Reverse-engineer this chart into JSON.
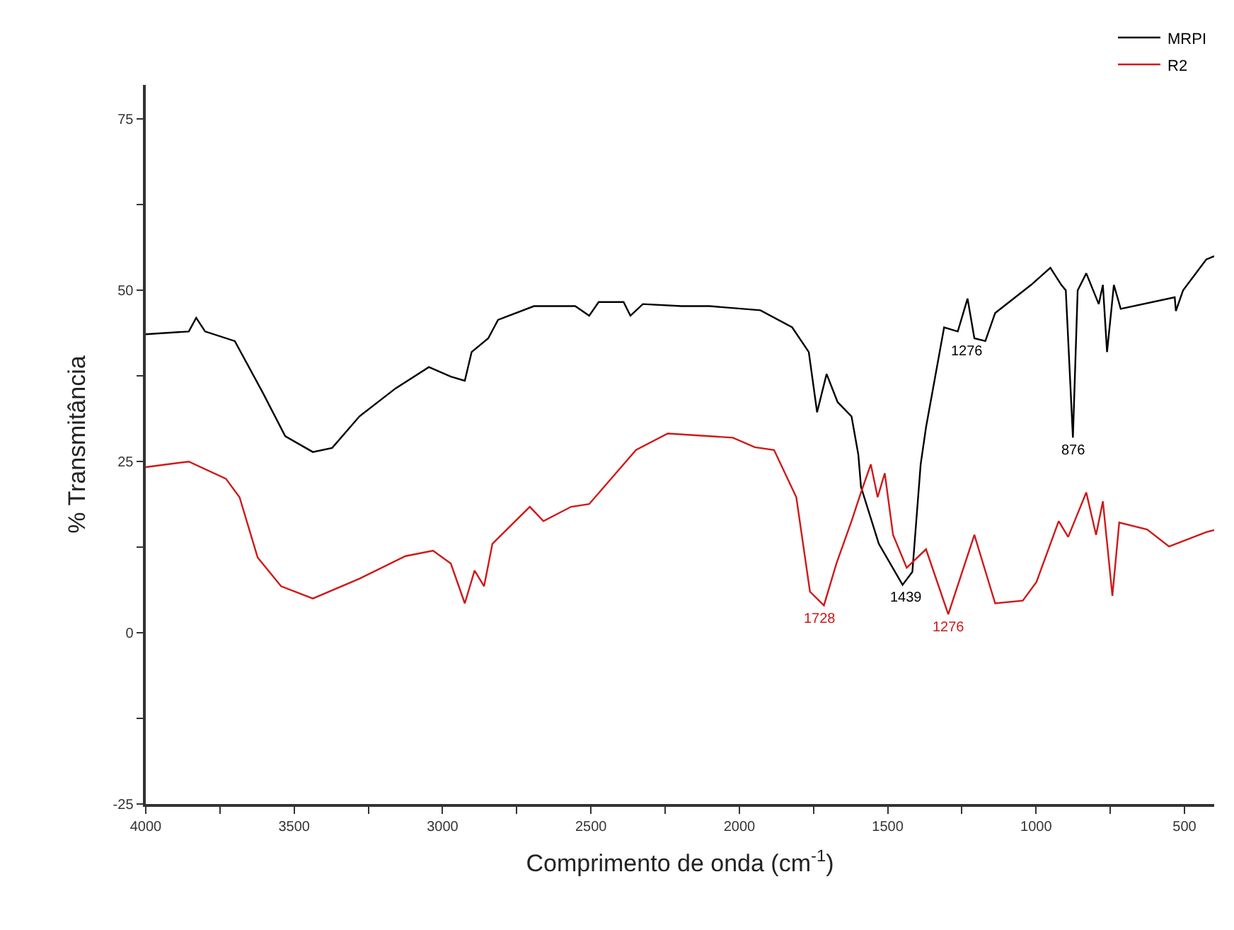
{
  "chart_data": {
    "type": "line",
    "xlabel": "Comprimento de onda (cm$^{-1}$)",
    "ylabel": "% Transmitância",
    "xlim": [
      4000,
      400
    ],
    "ylim": [
      -25,
      80
    ],
    "xticks": [
      4000,
      {
        "value": 3750,
        "label": null
      },
      3500,
      {
        "value": 3250,
        "label": null
      },
      3000,
      {
        "value": 2750,
        "label": null
      },
      2500,
      {
        "value": 2250,
        "label": null
      },
      2000,
      {
        "value": 1750,
        "label": null
      },
      1500,
      {
        "value": 1250,
        "label": null
      },
      1000,
      {
        "value": 750,
        "label": null
      },
      500
    ],
    "yticks": [
      -25,
      {
        "value": -12.5,
        "label": null
      },
      0,
      {
        "value": 12.5,
        "label": null
      },
      25,
      {
        "value": 37.5,
        "label": null
      },
      50,
      {
        "value": 62.5,
        "label": null
      },
      75
    ],
    "legend": "top right",
    "marker": "none",
    "line_style": "solid",
    "series": [
      {
        "name": "MRPI",
        "color": "#000000",
        "x": [
          4000,
          3855,
          3830,
          3800,
          3700,
          3605,
          3530,
          3437,
          3372,
          3280,
          3158,
          3046,
          2972,
          2925,
          2902,
          2846,
          2813,
          2692,
          2553,
          2506,
          2474,
          2390,
          2367,
          2325,
          2195,
          2100,
          1929,
          1822,
          1766,
          1738,
          1706,
          1669,
          1622,
          1599,
          1590,
          1530,
          1450,
          1417,
          1389,
          1371,
          1310,
          1264,
          1231,
          1208,
          1171,
          1138,
          1017,
          952,
          915,
          900,
          876,
          860,
          831,
          789,
          775,
          761,
          738,
          715,
          533,
          529,
          505,
          427,
          400
        ],
        "values": [
          43.6,
          44,
          46,
          44,
          42.6,
          35,
          28.7,
          26.4,
          27,
          31.6,
          35.7,
          38.8,
          37.4,
          36.8,
          41,
          43,
          45.7,
          47.7,
          47.7,
          46.3,
          48.3,
          48.3,
          46.3,
          48,
          47.7,
          47.7,
          47.1,
          44.6,
          41,
          32.2,
          37.8,
          33.7,
          31.6,
          26,
          21.3,
          13,
          7,
          8.9,
          24.6,
          30,
          44.6,
          44,
          48.8,
          43,
          42.6,
          46.7,
          50.8,
          53.3,
          50.8,
          50,
          28.5,
          50,
          52.5,
          48,
          50.8,
          41,
          50.8,
          47.3,
          49,
          47,
          50,
          54.5,
          55
        ]
      },
      {
        "name": "R2",
        "color": "#d01818",
        "x": [
          4000,
          3855,
          3730,
          3684,
          3623,
          3544,
          3437,
          3280,
          3125,
          3032,
          2972,
          2925,
          2892,
          2860,
          2832,
          2706,
          2660,
          2567,
          2506,
          2348,
          2241,
          2022,
          1948,
          1883,
          1808,
          1762,
          1715,
          1673,
          1622,
          1590,
          1557,
          1534,
          1510,
          1482,
          1436,
          1371,
          1296,
          1208,
          1138,
          1045,
          999,
          924,
          892,
          831,
          798,
          775,
          743,
          720,
          626,
          552,
          427,
          400
        ],
        "values": [
          24.2,
          25,
          22.5,
          19.8,
          11,
          6.8,
          5,
          7.9,
          11.2,
          12,
          10.1,
          4.3,
          9.1,
          6.8,
          13,
          18.4,
          16.3,
          18.4,
          18.8,
          26.7,
          29.1,
          28.5,
          27.1,
          26.7,
          19.8,
          6,
          4,
          10.1,
          16.3,
          20.5,
          24.6,
          19.8,
          23.3,
          14.3,
          9.5,
          12.2,
          2.7,
          14.3,
          4.3,
          4.7,
          7.4,
          16.3,
          14,
          20.5,
          14.3,
          19.2,
          5.4,
          16.1,
          15.1,
          12.6,
          14.7,
          15
        ]
      }
    ],
    "annotations": [
      {
        "text": "1276",
        "x": 1231,
        "y": 43
      },
      {
        "text": "876",
        "x": 876,
        "y": 28.5
      },
      {
        "text": "1439",
        "x": 1439,
        "y": 7
      },
      {
        "text": "1728",
        "x": 1728,
        "y": 4
      },
      {
        "text": "1276",
        "x": 1296,
        "y": 2.7
      }
    ]
  }
}
